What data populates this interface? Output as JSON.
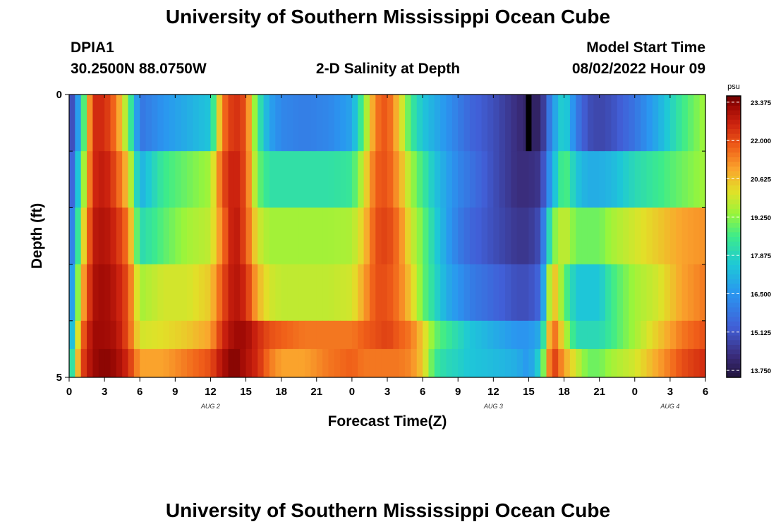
{
  "header": {
    "title": "University of Southern Mississippi Ocean Cube",
    "station_id": "DPIA1",
    "station_coords": "30.2500N  88.0750W",
    "plot_name": "2-D Salinity at Depth",
    "model_start_label": "Model Start Time",
    "model_start_value": "08/02/2022 Hour 09"
  },
  "footer": {
    "title": "University of Southern Mississippi Ocean Cube"
  },
  "chart_data": {
    "type": "heatmap",
    "title": "2-D Salinity at Depth",
    "xlabel": "Forecast Time(Z)",
    "ylabel": "Depth (ft)",
    "x_tick_labels": [
      "0",
      "3",
      "6",
      "9",
      "12",
      "15",
      "18",
      "21",
      "0",
      "3",
      "6",
      "9",
      "12",
      "15",
      "18",
      "21",
      "0",
      "3",
      "6"
    ],
    "x_ticks_hours": [
      0,
      3,
      6,
      9,
      12,
      15,
      18,
      21,
      24,
      27,
      30,
      33,
      36,
      39,
      42,
      45,
      48,
      51,
      54
    ],
    "xlim_hours": [
      0,
      54
    ],
    "date_labels": [
      {
        "label": "AUG 2",
        "hour": 12
      },
      {
        "label": "AUG 3",
        "hour": 36
      },
      {
        "label": "AUG 4",
        "hour": 51
      }
    ],
    "y_tick_labels": [
      "0",
      "5"
    ],
    "ylim": [
      0,
      5
    ],
    "colorbar": {
      "unit": "psu",
      "min": 13.5,
      "max": 23.6,
      "tick_labels": [
        "23.375",
        "22.000",
        "20.625",
        "19.250",
        "17.875",
        "16.500",
        "15.125",
        "13.750"
      ],
      "tick_values": [
        23.375,
        22.0,
        20.625,
        19.25,
        17.875,
        16.5,
        15.125,
        13.75
      ]
    },
    "depth_rows": [
      "0-1",
      "1-2",
      "2-3",
      "3-4",
      "4-4.5",
      "4.5-5"
    ],
    "depth_row_bounds": [
      0,
      1,
      2,
      3,
      4,
      4.5,
      5
    ],
    "time_knots_hours": [
      0,
      1,
      2,
      3,
      4,
      5,
      6,
      8,
      10,
      12,
      13,
      14,
      15,
      16,
      17,
      18,
      20,
      22,
      24,
      25,
      26,
      27,
      28,
      29,
      30,
      31,
      32,
      33,
      34,
      36,
      38,
      39,
      40,
      41,
      42,
      43,
      44,
      45,
      46,
      48,
      50,
      52,
      54
    ],
    "salinity_knots": [
      [
        14.2,
        17.5,
        22.5,
        22.5,
        21.5,
        19.2,
        15.8,
        16.5,
        17.0,
        17.5,
        21.5,
        22.5,
        22.0,
        18.5,
        16.8,
        16.2,
        16.0,
        16.2,
        16.8,
        19.0,
        21.5,
        22.0,
        20.5,
        18.5,
        17.5,
        17.0,
        16.5,
        16.0,
        15.5,
        15.0,
        14.3,
        14.0,
        14.0,
        16.5,
        18.0,
        16.0,
        15.0,
        14.8,
        15.0,
        15.8,
        17.0,
        18.5,
        19.5
      ],
      [
        14.5,
        18.5,
        22.5,
        22.8,
        22.0,
        20.5,
        17.0,
        18.5,
        19.0,
        19.5,
        22.0,
        22.8,
        22.0,
        19.0,
        18.2,
        18.2,
        18.2,
        18.2,
        18.4,
        20.0,
        21.8,
        22.0,
        21.0,
        19.5,
        18.5,
        17.5,
        16.8,
        16.2,
        15.8,
        15.0,
        14.3,
        14.3,
        14.5,
        17.0,
        19.0,
        17.5,
        17.0,
        17.0,
        17.2,
        18.0,
        18.5,
        19.0,
        19.5
      ],
      [
        15.0,
        19.5,
        22.8,
        23.0,
        22.5,
        21.5,
        18.0,
        18.8,
        19.5,
        19.8,
        21.5,
        23.0,
        22.0,
        20.0,
        19.5,
        19.5,
        19.5,
        19.5,
        19.6,
        20.5,
        22.0,
        22.2,
        21.5,
        20.0,
        19.0,
        17.8,
        16.8,
        16.0,
        15.5,
        15.0,
        14.5,
        14.5,
        15.0,
        19.0,
        20.0,
        19.0,
        19.0,
        19.0,
        19.5,
        20.0,
        20.5,
        21.0,
        21.2
      ],
      [
        15.5,
        20.5,
        23.0,
        23.2,
        22.8,
        22.0,
        19.5,
        20.0,
        20.0,
        20.5,
        22.0,
        23.0,
        22.5,
        20.8,
        20.0,
        19.8,
        19.8,
        19.8,
        20.0,
        21.0,
        22.0,
        22.0,
        21.5,
        20.5,
        19.0,
        18.0,
        17.0,
        16.5,
        16.0,
        15.5,
        15.0,
        15.0,
        15.5,
        21.0,
        19.0,
        17.5,
        17.5,
        17.5,
        18.5,
        19.5,
        20.0,
        21.0,
        21.5
      ],
      [
        16.0,
        21.5,
        23.2,
        23.2,
        23.0,
        22.0,
        20.0,
        20.2,
        20.5,
        21.0,
        22.5,
        23.2,
        23.2,
        22.5,
        22.0,
        21.8,
        21.5,
        21.5,
        21.5,
        21.8,
        22.0,
        22.2,
        21.8,
        21.5,
        20.5,
        19.0,
        18.5,
        18.0,
        17.5,
        17.0,
        16.5,
        16.5,
        17.0,
        22.0,
        20.0,
        18.0,
        18.0,
        18.0,
        18.5,
        19.5,
        20.5,
        21.5,
        22.0
      ],
      [
        17.0,
        22.0,
        23.2,
        23.4,
        23.2,
        22.5,
        21.0,
        21.0,
        21.5,
        22.0,
        23.0,
        23.5,
        23.0,
        22.5,
        21.5,
        21.0,
        21.0,
        21.5,
        21.8,
        21.5,
        21.5,
        21.5,
        21.5,
        21.3,
        20.5,
        18.5,
        18.0,
        17.8,
        17.5,
        17.3,
        17.0,
        16.5,
        18.0,
        22.5,
        21.0,
        20.0,
        19.0,
        19.0,
        19.5,
        20.0,
        21.0,
        22.0,
        22.5
      ]
    ],
    "missing_cells": [
      {
        "hour": 39,
        "depth_row": 0
      }
    ]
  }
}
